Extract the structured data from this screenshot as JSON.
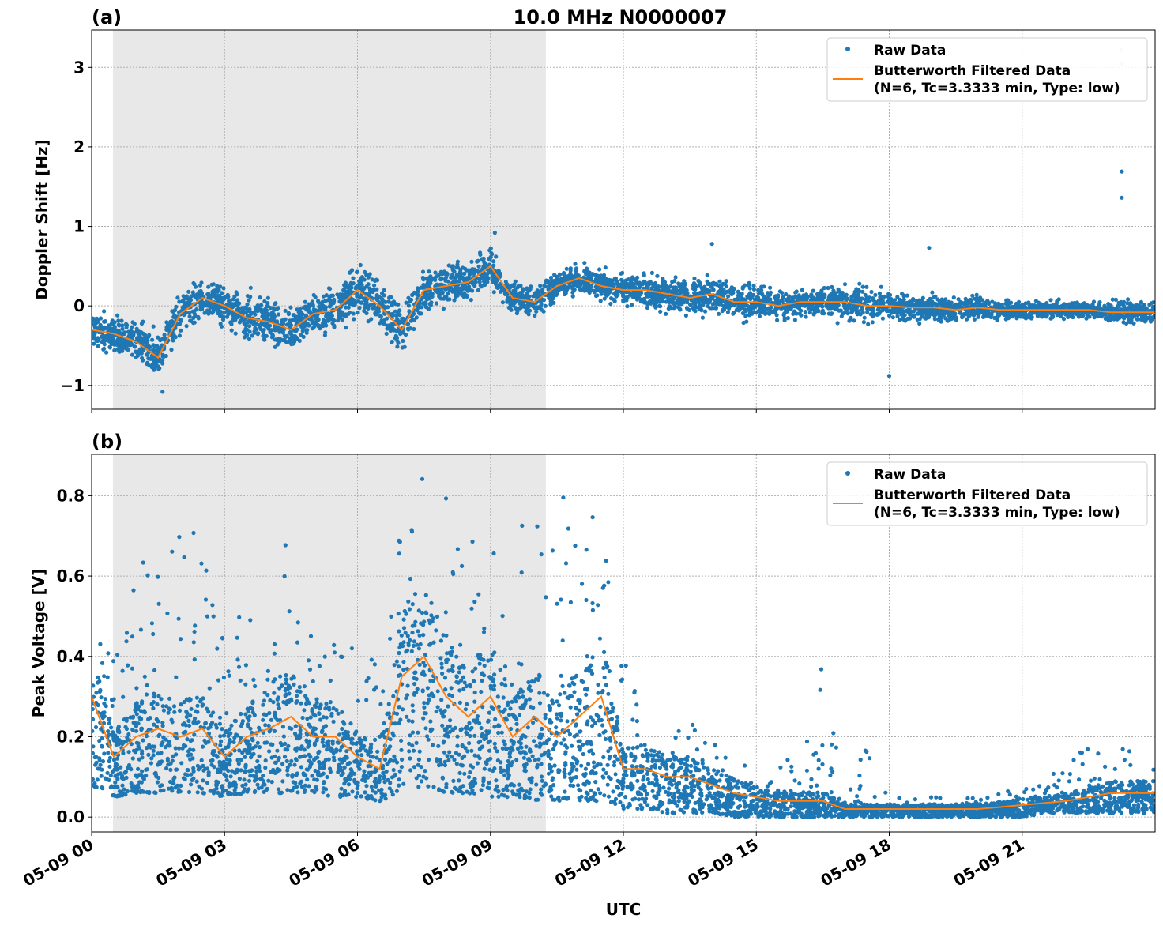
{
  "chart_data": [
    {
      "type": "scatter",
      "panel_label": "(a)",
      "title": "10.0 MHz N0000007",
      "ylabel": "Doppler Shift [Hz]",
      "xlabel": "",
      "x_unit": "hours since 05-09 00 UTC",
      "xlim": [
        0,
        24
      ],
      "ylim": [
        -1.3,
        3.47
      ],
      "yticks": [
        -1,
        0,
        1,
        2,
        3
      ],
      "ytick_labels": [
        "−1",
        "0",
        "1",
        "2",
        "3"
      ],
      "grid": true,
      "legend_position": "top-right",
      "shaded_interval_hours": [
        0.48,
        10.25
      ],
      "colors": {
        "raw": "#1f77b4",
        "filtered": "#ff7f0e",
        "shade": "#e8e8e8"
      },
      "legend": [
        "Raw Data",
        "Butterworth Filtered Data\n(N=6, Tc=3.3333 min, Type: low)"
      ],
      "legend_lines": [
        "Raw Data",
        "Butterworth Filtered Data",
        "(N=6, Tc=3.3333 min, Type: low)"
      ],
      "hours": [
        0,
        0.5,
        1,
        1.5,
        2,
        2.5,
        3,
        3.5,
        4,
        4.5,
        5,
        5.5,
        6,
        6.5,
        7,
        7.5,
        8,
        8.5,
        9,
        9.5,
        10,
        10.5,
        11,
        11.5,
        12,
        12.5,
        13,
        13.5,
        14,
        14.5,
        15,
        15.5,
        16,
        16.5,
        17,
        17.5,
        18,
        18.5,
        19,
        19.5,
        20,
        20.5,
        21,
        21.5,
        22,
        22.5,
        23,
        23.5,
        24
      ],
      "filtered": [
        -0.3,
        -0.35,
        -0.45,
        -0.65,
        -0.1,
        0.1,
        0.0,
        -0.15,
        -0.2,
        -0.3,
        -0.1,
        -0.05,
        0.2,
        0.0,
        -0.3,
        0.2,
        0.25,
        0.3,
        0.5,
        0.1,
        0.05,
        0.25,
        0.35,
        0.25,
        0.2,
        0.2,
        0.15,
        0.1,
        0.15,
        0.05,
        0.05,
        0.0,
        0.05,
        0.05,
        0.05,
        0.0,
        0.0,
        -0.02,
        -0.02,
        -0.05,
        -0.02,
        -0.05,
        -0.05,
        -0.05,
        -0.05,
        -0.05,
        -0.08,
        -0.08,
        -0.08
      ],
      "raw_spread": [
        0.3,
        0.3,
        0.35,
        0.4,
        0.35,
        0.3,
        0.35,
        0.4,
        0.4,
        0.4,
        0.35,
        0.4,
        0.45,
        0.4,
        0.4,
        0.35,
        0.35,
        0.3,
        0.35,
        0.3,
        0.25,
        0.25,
        0.25,
        0.25,
        0.25,
        0.25,
        0.3,
        0.3,
        0.3,
        0.3,
        0.3,
        0.25,
        0.25,
        0.25,
        0.3,
        0.3,
        0.25,
        0.25,
        0.25,
        0.2,
        0.2,
        0.15,
        0.15,
        0.15,
        0.15,
        0.15,
        0.2,
        0.2,
        0.2
      ],
      "outliers": [
        [
          23.25,
          3.22
        ],
        [
          23.25,
          3.04
        ],
        [
          23.25,
          1.69
        ],
        [
          23.25,
          1.36
        ],
        [
          18.0,
          -0.88
        ],
        [
          1.6,
          -1.08
        ],
        [
          9.1,
          0.92
        ],
        [
          14.0,
          0.78
        ],
        [
          18.9,
          0.73
        ]
      ]
    },
    {
      "type": "scatter",
      "panel_label": "(b)",
      "title": "",
      "ylabel": "Peak Voltage [V]",
      "xlabel": "UTC",
      "xlim": [
        0,
        24
      ],
      "ylim": [
        -0.037,
        0.903
      ],
      "yticks": [
        0.0,
        0.2,
        0.4,
        0.6,
        0.8
      ],
      "ytick_labels": [
        "0.0",
        "0.2",
        "0.4",
        "0.6",
        "0.8"
      ],
      "xticks": [
        0,
        3,
        6,
        9,
        12,
        15,
        18,
        21
      ],
      "xtick_labels": [
        "05-09 00",
        "05-09 03",
        "05-09 06",
        "05-09 09",
        "05-09 12",
        "05-09 15",
        "05-09 18",
        "05-09 21"
      ],
      "grid": true,
      "legend_position": "top-right",
      "shaded_interval_hours": [
        0.48,
        10.25
      ],
      "legend_lines": [
        "Raw Data",
        "Butterworth Filtered Data",
        "(N=6, Tc=3.3333 min, Type: low)"
      ],
      "hours": [
        0,
        0.5,
        1,
        1.5,
        2,
        2.5,
        3,
        3.5,
        4,
        4.5,
        5,
        5.5,
        6,
        6.5,
        7,
        7.5,
        8,
        8.5,
        9,
        9.5,
        10,
        10.5,
        11,
        11.5,
        12,
        12.5,
        13,
        13.5,
        14,
        14.5,
        15,
        15.5,
        16,
        16.5,
        17,
        17.5,
        18,
        18.5,
        19,
        19.5,
        20,
        20.5,
        21,
        21.5,
        22,
        22.5,
        23,
        23.5,
        24
      ],
      "filtered": [
        0.3,
        0.15,
        0.2,
        0.22,
        0.2,
        0.22,
        0.15,
        0.2,
        0.22,
        0.25,
        0.2,
        0.2,
        0.15,
        0.12,
        0.35,
        0.4,
        0.3,
        0.25,
        0.3,
        0.2,
        0.25,
        0.2,
        0.25,
        0.3,
        0.12,
        0.12,
        0.1,
        0.1,
        0.08,
        0.06,
        0.05,
        0.04,
        0.04,
        0.04,
        0.02,
        0.02,
        0.02,
        0.02,
        0.02,
        0.02,
        0.02,
        0.025,
        0.03,
        0.035,
        0.04,
        0.05,
        0.06,
        0.06,
        0.06
      ],
      "raw_low": [
        0.08,
        0.05,
        0.06,
        0.06,
        0.06,
        0.06,
        0.05,
        0.06,
        0.06,
        0.06,
        0.06,
        0.05,
        0.05,
        0.04,
        0.06,
        0.08,
        0.06,
        0.06,
        0.05,
        0.05,
        0.04,
        0.04,
        0.04,
        0.04,
        0.02,
        0.02,
        0.01,
        0.01,
        0.01,
        0.0,
        0.0,
        0.0,
        0.0,
        0.0,
        0.0,
        0.0,
        0.0,
        0.0,
        0.0,
        0.0,
        0.0,
        0.0,
        0.0,
        0.01,
        0.01,
        0.01,
        0.01,
        0.01,
        0.01
      ],
      "raw_high": [
        0.55,
        0.4,
        0.65,
        0.62,
        0.78,
        0.66,
        0.45,
        0.55,
        0.5,
        0.77,
        0.48,
        0.45,
        0.42,
        0.45,
        0.85,
        0.85,
        0.84,
        0.8,
        0.79,
        0.65,
        0.83,
        0.8,
        0.8,
        0.86,
        0.45,
        0.33,
        0.25,
        0.25,
        0.24,
        0.14,
        0.13,
        0.13,
        0.18,
        0.4,
        0.07,
        0.18,
        0.06,
        0.05,
        0.05,
        0.05,
        0.05,
        0.06,
        0.08,
        0.1,
        0.13,
        0.19,
        0.19,
        0.16,
        0.13
      ]
    }
  ]
}
